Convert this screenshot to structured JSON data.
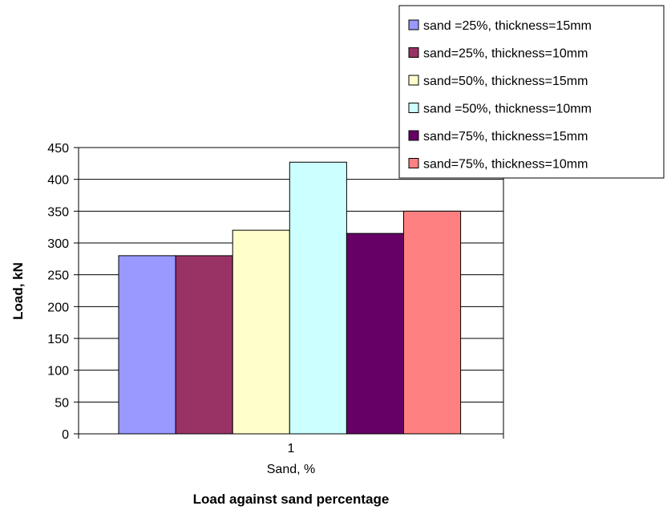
{
  "chart_data": {
    "type": "bar",
    "title": "Load against sand percentage",
    "xlabel": "Sand, %",
    "ylabel": "Load, kN",
    "categories": [
      "1"
    ],
    "ylim": [
      0,
      450
    ],
    "yticks": [
      0,
      50,
      100,
      150,
      200,
      250,
      300,
      350,
      400,
      450
    ],
    "grid": true,
    "legend_position": "top-right",
    "series": [
      {
        "name": "sand =25%, thickness=15mm",
        "values": [
          280
        ],
        "color": "#9999FF"
      },
      {
        "name": "sand=25%, thickness=10mm",
        "values": [
          280
        ],
        "color": "#993366"
      },
      {
        "name": "sand=50%, thickness=15mm",
        "values": [
          320
        ],
        "color": "#FFFFCC"
      },
      {
        "name": "sand =50%, thickness=10mm",
        "values": [
          427
        ],
        "color": "#CCFFFF"
      },
      {
        "name": "sand=75%, thickness=15mm",
        "values": [
          315
        ],
        "color": "#660066"
      },
      {
        "name": "sand=75%, thickness=10mm",
        "values": [
          350
        ],
        "color": "#FF8080"
      }
    ]
  }
}
